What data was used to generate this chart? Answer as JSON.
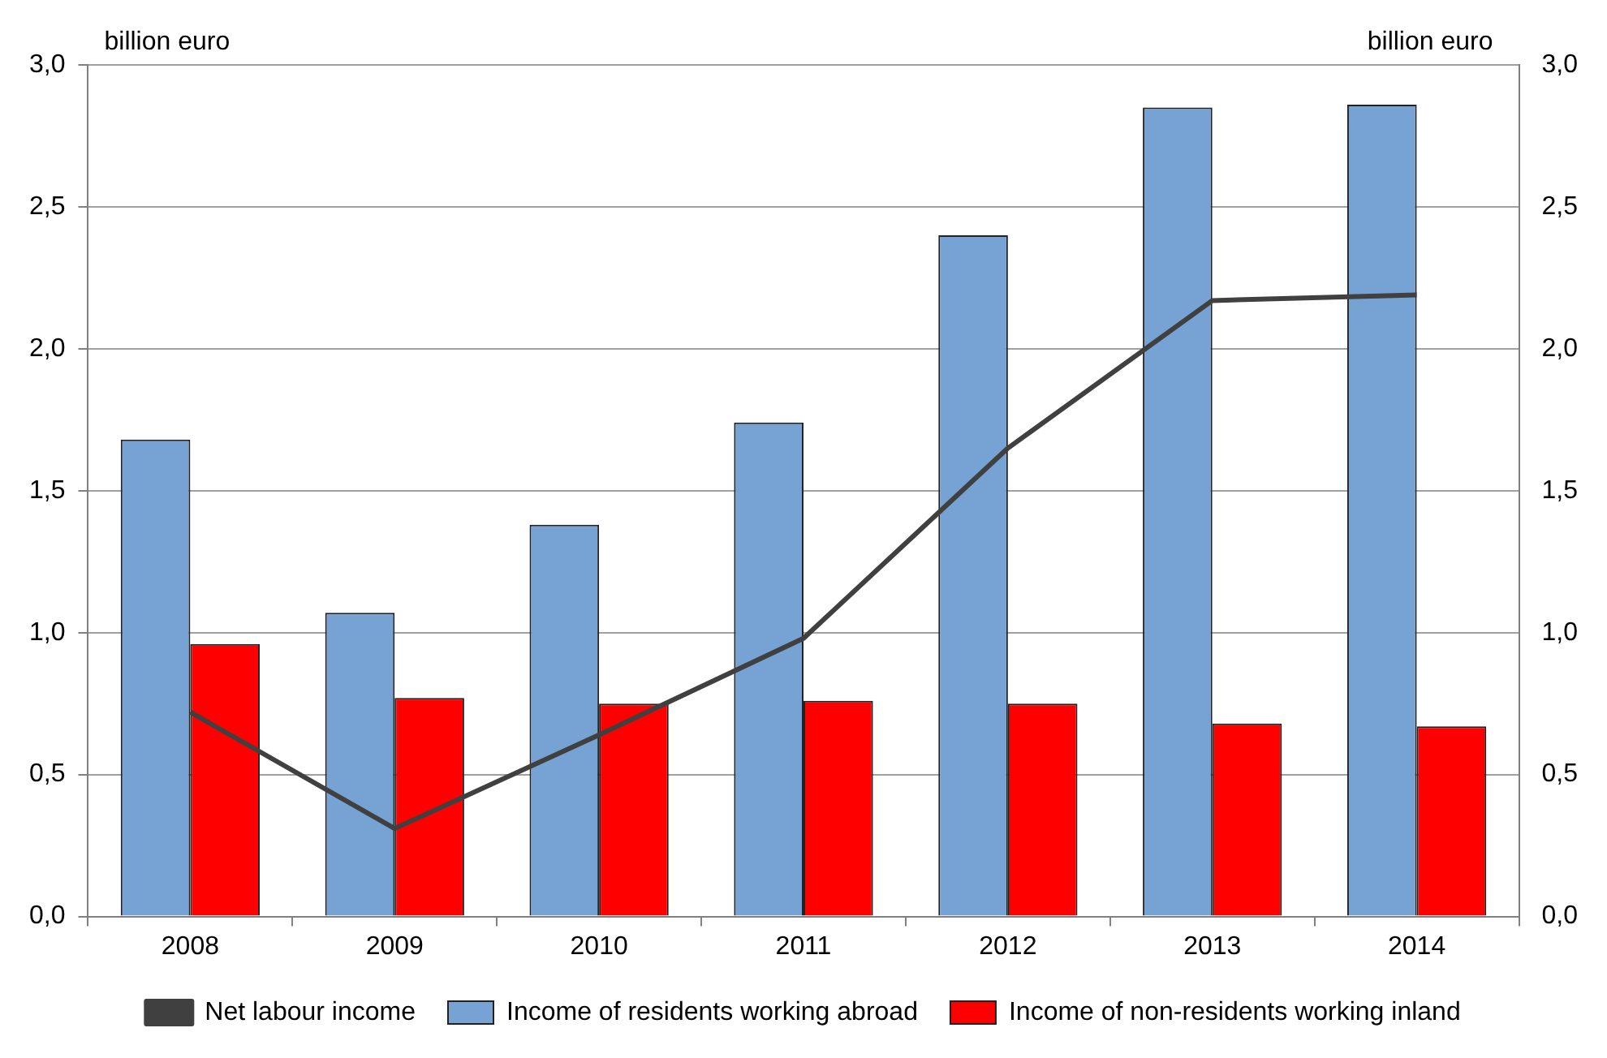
{
  "chart_data": {
    "type": "bar",
    "ylabel": "billion euro",
    "y2label": "billion euro",
    "categories": [
      "2008",
      "2009",
      "2010",
      "2011",
      "2012",
      "2013",
      "2014"
    ],
    "series": [
      {
        "name": "Income of residents working abroad",
        "color": "#77a3d4",
        "values": [
          1.68,
          1.07,
          1.38,
          1.74,
          2.4,
          2.85,
          2.86
        ]
      },
      {
        "name": "Income of non-residents working inland",
        "color": "#ff0000",
        "values": [
          0.96,
          0.77,
          0.75,
          0.76,
          0.75,
          0.68,
          0.67
        ]
      },
      {
        "name": "Net labour income",
        "type": "line",
        "color": "#404040",
        "values": [
          0.72,
          0.31,
          0.64,
          0.98,
          1.65,
          2.17,
          2.19
        ],
        "marker": "none",
        "line_style": "solid"
      }
    ],
    "ylim": [
      0,
      3
    ],
    "yticks": [
      {
        "value": 0,
        "label": "0,0"
      },
      {
        "value": 0.5,
        "label": "0,5"
      },
      {
        "value": 1,
        "label": "1,0"
      },
      {
        "value": 1.5,
        "label": "1,5"
      },
      {
        "value": 2,
        "label": "2,0"
      },
      {
        "value": 2.5,
        "label": "2,5"
      },
      {
        "value": 3,
        "label": "3,0"
      }
    ],
    "y2lim": [
      0,
      3
    ],
    "y2ticks": [
      {
        "value": 0,
        "label": "0,0"
      },
      {
        "value": 0.5,
        "label": "0,5"
      },
      {
        "value": 1,
        "label": "1,0"
      },
      {
        "value": 1.5,
        "label": "1,5"
      },
      {
        "value": 2,
        "label": "2,0"
      },
      {
        "value": 2.5,
        "label": "2,5"
      },
      {
        "value": 3,
        "label": "3,0"
      }
    ],
    "grid": "y",
    "legend": "bottom"
  }
}
